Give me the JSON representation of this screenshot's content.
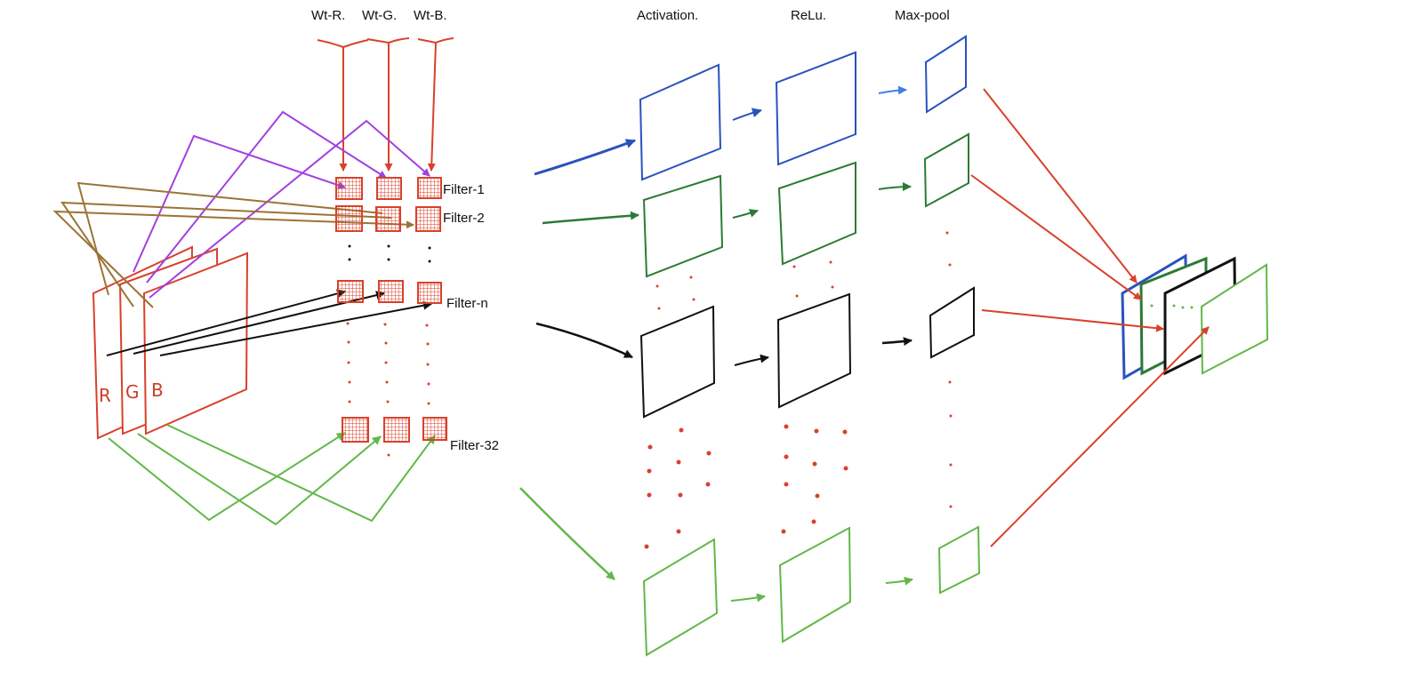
{
  "weight_labels": {
    "red": "Wt-R.",
    "green": "Wt-G.",
    "blue": "Wt-B."
  },
  "column_headers": {
    "activation": "Activation.",
    "relu": "ReLu.",
    "maxpool": "Max-pool"
  },
  "filter_labels": {
    "filter_1": "Filter-1",
    "filter_2": "Filter-2",
    "filter_n": "Filter-n",
    "filter_32": "Filter-32"
  },
  "channel_labels": {
    "r": "R",
    "g": "G",
    "b": "B"
  },
  "colors": {
    "red": "#d9412b",
    "purple": "#a23fe0",
    "brown": "#9a7436",
    "blue": "#2a52be",
    "light_blue": "#3f7fe0",
    "dark_green": "#2c7a35",
    "light_green": "#62b848",
    "black": "#111111"
  }
}
